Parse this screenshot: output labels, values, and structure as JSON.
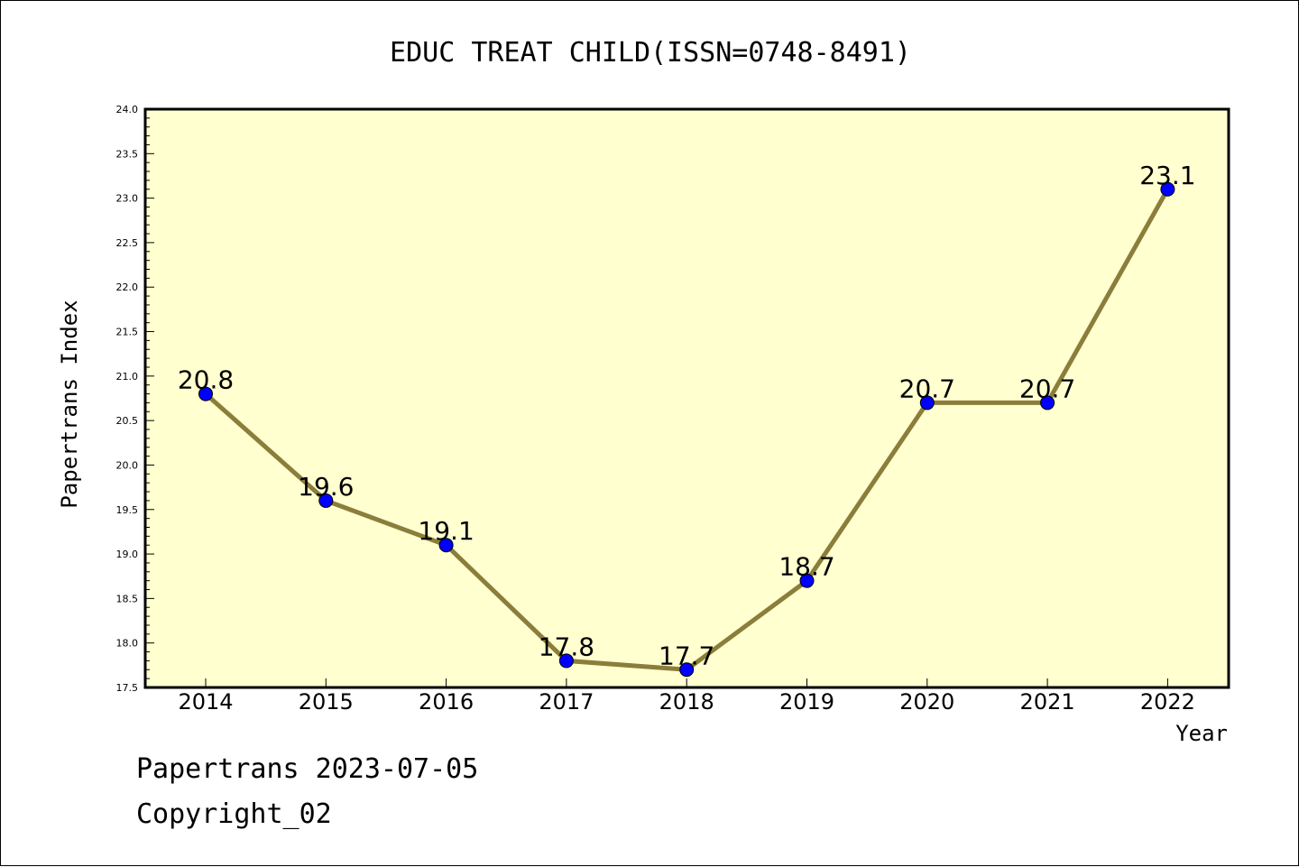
{
  "chart_data": {
    "type": "line",
    "title": "EDUC TREAT CHILD(ISSN=0748-8491)",
    "xlabel": "Year",
    "ylabel": "Papertrans Index",
    "categories": [
      "2014",
      "2015",
      "2016",
      "2017",
      "2018",
      "2019",
      "2020",
      "2021",
      "2022"
    ],
    "values": [
      20.8,
      19.6,
      19.1,
      17.8,
      17.7,
      18.7,
      20.7,
      20.7,
      23.1
    ],
    "value_labels": [
      "20.8",
      "19.6",
      "19.1",
      "17.8",
      "17.7",
      "18.7",
      "20.7",
      "20.7",
      "23.1"
    ],
    "ylim": [
      17.5,
      24.0
    ],
    "yticks": [
      "17.5",
      "18.0",
      "18.5",
      "19.0",
      "19.5",
      "20.0",
      "20.5",
      "21.0",
      "21.5",
      "22.0",
      "22.5",
      "23.0",
      "23.5",
      "24.0"
    ],
    "grid": false,
    "colors": {
      "plot_background": "#ffffd0",
      "line": "#8b7d3a",
      "marker": "#0000ff"
    }
  },
  "footer": {
    "line1": "Papertrans 2023-07-05",
    "line2": "Copyright_02"
  }
}
